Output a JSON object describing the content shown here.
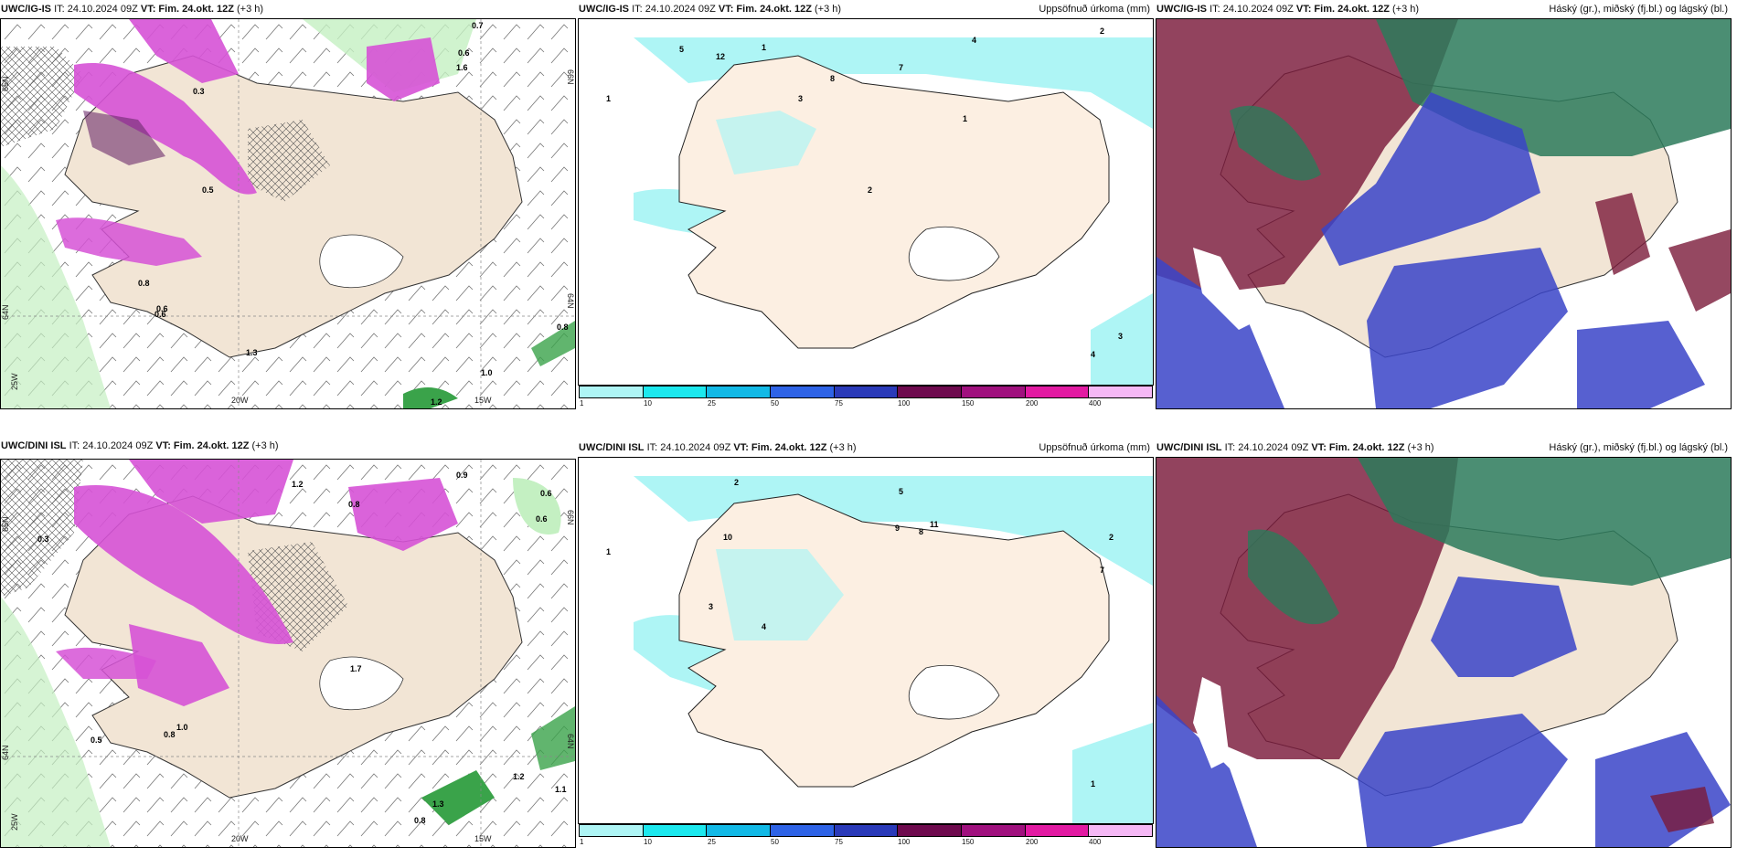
{
  "rows": [
    {
      "model": "UWC/IG-IS",
      "it": "IT: 24.10.2024 09Z",
      "vt": "VT: Fim. 24.okt. 12Z",
      "lead": "(+3 h)",
      "wind_panel": {
        "lon_labels": [
          "20W",
          "15W",
          "25W"
        ],
        "lat_labels": [
          "65N",
          "64N",
          "66N",
          "64N"
        ],
        "values": [
          "0.7",
          "0.6",
          "1.6",
          "0.3",
          "0.6",
          "0.5",
          "0.8",
          "0.6",
          "1.3",
          "0.8",
          "1.0",
          "1.2"
        ]
      },
      "precip_panel": {
        "title": "Uppsöfnuð úrkoma (mm)",
        "values": [
          "2",
          "1",
          "4",
          "5",
          "12",
          "8",
          "7",
          "3",
          "1",
          "2",
          "4",
          "1",
          "3"
        ]
      },
      "cloud_panel": {
        "title": "Háský (gr.), miðský (fj.bl.) og lágský (bl.)"
      }
    },
    {
      "model": "UWC/DINI ISL",
      "it": "IT: 24.10.2024 09Z",
      "vt": "VT: Fim. 24.okt. 12Z",
      "lead": "(+3 h)",
      "wind_panel": {
        "lon_labels": [
          "20W",
          "15W",
          "25W"
        ],
        "lat_labels": [
          "65N",
          "64N",
          "66N",
          "64N"
        ],
        "values": [
          "0.3",
          "1.2",
          "0.8",
          "0.9",
          "0.6",
          "0.6",
          "1.7",
          "0.5",
          "0.8",
          "1.0",
          "1.2",
          "1.1",
          "1.3",
          "0.8"
        ]
      },
      "precip_panel": {
        "title": "Uppsöfnuð úrkoma (mm)",
        "values": [
          "2",
          "1",
          "5",
          "10",
          "11",
          "8",
          "9",
          "4",
          "3",
          "2",
          "7",
          "1"
        ]
      },
      "cloud_panel": {
        "title": "Háský (gr.), miðský (fj.bl.) og lágský (bl.)"
      }
    }
  ],
  "legend": {
    "ticks": [
      "1",
      "10",
      "25",
      "50",
      "75",
      "100",
      "150",
      "200",
      "400"
    ],
    "colors": [
      "#aef5f5",
      "#1ce8ee",
      "#12b9e6",
      "#2e63e6",
      "#2a3ab9",
      "#6e0a4e",
      "#a0107e",
      "#e21aa2",
      "#f5b8f5"
    ]
  },
  "colors": {
    "land": "#f2e5d5",
    "sea": "#ffffff",
    "precip_light": "#c4f0c2",
    "precip_green": "#3aa34a",
    "precip_magenta": "#d652d6",
    "precip_purple": "#6a2a6a",
    "cloud_high": "#7a1a3a",
    "cloud_mid": "#2c7a5a",
    "cloud_low": "#3a44c8"
  }
}
